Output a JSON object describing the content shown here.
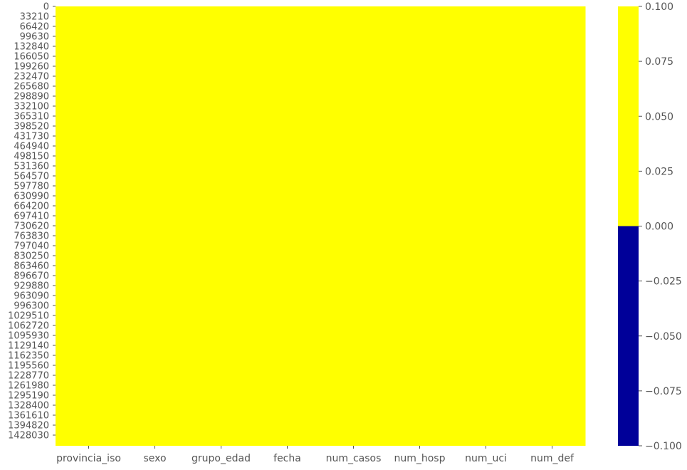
{
  "chart_data": {
    "type": "heatmap",
    "title": "",
    "xlabel": "",
    "ylabel": "",
    "columns": [
      "provincia_iso",
      "sexo",
      "grupo_edad",
      "fecha",
      "num_casos",
      "num_hosp",
      "num_uci",
      "num_def"
    ],
    "row_tick_labels": [
      "0",
      "33210",
      "66420",
      "99630",
      "132840",
      "166050",
      "199260",
      "232470",
      "265680",
      "298890",
      "332100",
      "365310",
      "398520",
      "431730",
      "464940",
      "498150",
      "531360",
      "564570",
      "597780",
      "630990",
      "664200",
      "697410",
      "730620",
      "763830",
      "797040",
      "830250",
      "863460",
      "896670",
      "929880",
      "963090",
      "996300",
      "1029510",
      "1062720",
      "1095930",
      "1129140",
      "1162350",
      "1195560",
      "1228770",
      "1261980",
      "1295190",
      "1328400",
      "1361610",
      "1394820",
      "1428030"
    ],
    "cell_value_all": 0,
    "colorbar": {
      "range": [
        -0.1,
        0.1
      ],
      "ticks": [
        "0.100",
        "0.075",
        "0.050",
        "0.025",
        "0.000",
        "−0.025",
        "−0.050",
        "−0.075",
        "−0.100"
      ],
      "colors": {
        "true_missing": "#ffff00",
        "false_present": "#000099"
      }
    },
    "grid": false
  }
}
